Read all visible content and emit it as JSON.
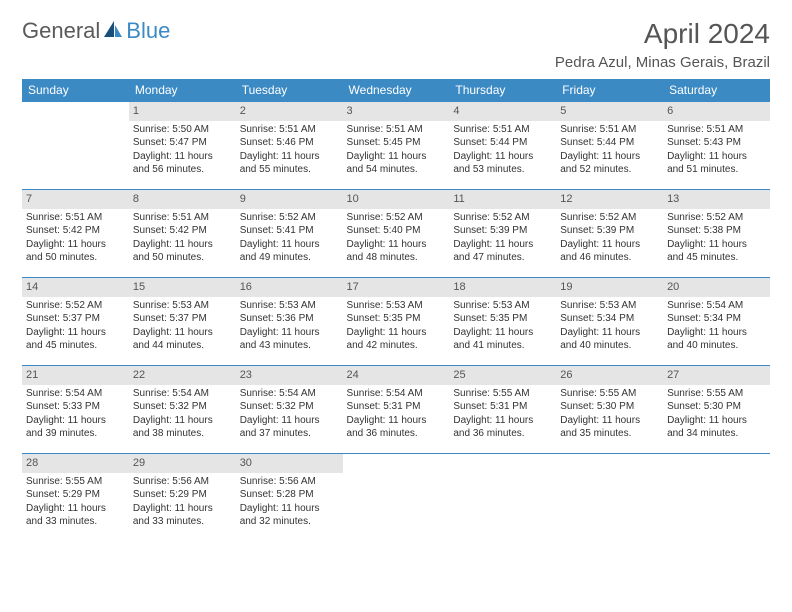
{
  "brand": {
    "general": "General",
    "blue": "Blue"
  },
  "title": "April 2024",
  "location": "Pedra Azul, Minas Gerais, Brazil",
  "colors": {
    "header_bg": "#3b8ac4",
    "header_text": "#ffffff",
    "daynum_bg": "#e5e5e5",
    "border": "#3b8ac4",
    "text": "#333333"
  },
  "typography": {
    "title_fontsize": 28,
    "location_fontsize": 15,
    "dayheader_fontsize": 12,
    "cell_fontsize": 10
  },
  "day_headers": [
    "Sunday",
    "Monday",
    "Tuesday",
    "Wednesday",
    "Thursday",
    "Friday",
    "Saturday"
  ],
  "weeks": [
    [
      null,
      {
        "n": "1",
        "sr": "Sunrise: 5:50 AM",
        "ss": "Sunset: 5:47 PM",
        "dl": "Daylight: 11 hours and 56 minutes."
      },
      {
        "n": "2",
        "sr": "Sunrise: 5:51 AM",
        "ss": "Sunset: 5:46 PM",
        "dl": "Daylight: 11 hours and 55 minutes."
      },
      {
        "n": "3",
        "sr": "Sunrise: 5:51 AM",
        "ss": "Sunset: 5:45 PM",
        "dl": "Daylight: 11 hours and 54 minutes."
      },
      {
        "n": "4",
        "sr": "Sunrise: 5:51 AM",
        "ss": "Sunset: 5:44 PM",
        "dl": "Daylight: 11 hours and 53 minutes."
      },
      {
        "n": "5",
        "sr": "Sunrise: 5:51 AM",
        "ss": "Sunset: 5:44 PM",
        "dl": "Daylight: 11 hours and 52 minutes."
      },
      {
        "n": "6",
        "sr": "Sunrise: 5:51 AM",
        "ss": "Sunset: 5:43 PM",
        "dl": "Daylight: 11 hours and 51 minutes."
      }
    ],
    [
      {
        "n": "7",
        "sr": "Sunrise: 5:51 AM",
        "ss": "Sunset: 5:42 PM",
        "dl": "Daylight: 11 hours and 50 minutes."
      },
      {
        "n": "8",
        "sr": "Sunrise: 5:51 AM",
        "ss": "Sunset: 5:42 PM",
        "dl": "Daylight: 11 hours and 50 minutes."
      },
      {
        "n": "9",
        "sr": "Sunrise: 5:52 AM",
        "ss": "Sunset: 5:41 PM",
        "dl": "Daylight: 11 hours and 49 minutes."
      },
      {
        "n": "10",
        "sr": "Sunrise: 5:52 AM",
        "ss": "Sunset: 5:40 PM",
        "dl": "Daylight: 11 hours and 48 minutes."
      },
      {
        "n": "11",
        "sr": "Sunrise: 5:52 AM",
        "ss": "Sunset: 5:39 PM",
        "dl": "Daylight: 11 hours and 47 minutes."
      },
      {
        "n": "12",
        "sr": "Sunrise: 5:52 AM",
        "ss": "Sunset: 5:39 PM",
        "dl": "Daylight: 11 hours and 46 minutes."
      },
      {
        "n": "13",
        "sr": "Sunrise: 5:52 AM",
        "ss": "Sunset: 5:38 PM",
        "dl": "Daylight: 11 hours and 45 minutes."
      }
    ],
    [
      {
        "n": "14",
        "sr": "Sunrise: 5:52 AM",
        "ss": "Sunset: 5:37 PM",
        "dl": "Daylight: 11 hours and 45 minutes."
      },
      {
        "n": "15",
        "sr": "Sunrise: 5:53 AM",
        "ss": "Sunset: 5:37 PM",
        "dl": "Daylight: 11 hours and 44 minutes."
      },
      {
        "n": "16",
        "sr": "Sunrise: 5:53 AM",
        "ss": "Sunset: 5:36 PM",
        "dl": "Daylight: 11 hours and 43 minutes."
      },
      {
        "n": "17",
        "sr": "Sunrise: 5:53 AM",
        "ss": "Sunset: 5:35 PM",
        "dl": "Daylight: 11 hours and 42 minutes."
      },
      {
        "n": "18",
        "sr": "Sunrise: 5:53 AM",
        "ss": "Sunset: 5:35 PM",
        "dl": "Daylight: 11 hours and 41 minutes."
      },
      {
        "n": "19",
        "sr": "Sunrise: 5:53 AM",
        "ss": "Sunset: 5:34 PM",
        "dl": "Daylight: 11 hours and 40 minutes."
      },
      {
        "n": "20",
        "sr": "Sunrise: 5:54 AM",
        "ss": "Sunset: 5:34 PM",
        "dl": "Daylight: 11 hours and 40 minutes."
      }
    ],
    [
      {
        "n": "21",
        "sr": "Sunrise: 5:54 AM",
        "ss": "Sunset: 5:33 PM",
        "dl": "Daylight: 11 hours and 39 minutes."
      },
      {
        "n": "22",
        "sr": "Sunrise: 5:54 AM",
        "ss": "Sunset: 5:32 PM",
        "dl": "Daylight: 11 hours and 38 minutes."
      },
      {
        "n": "23",
        "sr": "Sunrise: 5:54 AM",
        "ss": "Sunset: 5:32 PM",
        "dl": "Daylight: 11 hours and 37 minutes."
      },
      {
        "n": "24",
        "sr": "Sunrise: 5:54 AM",
        "ss": "Sunset: 5:31 PM",
        "dl": "Daylight: 11 hours and 36 minutes."
      },
      {
        "n": "25",
        "sr": "Sunrise: 5:55 AM",
        "ss": "Sunset: 5:31 PM",
        "dl": "Daylight: 11 hours and 36 minutes."
      },
      {
        "n": "26",
        "sr": "Sunrise: 5:55 AM",
        "ss": "Sunset: 5:30 PM",
        "dl": "Daylight: 11 hours and 35 minutes."
      },
      {
        "n": "27",
        "sr": "Sunrise: 5:55 AM",
        "ss": "Sunset: 5:30 PM",
        "dl": "Daylight: 11 hours and 34 minutes."
      }
    ],
    [
      {
        "n": "28",
        "sr": "Sunrise: 5:55 AM",
        "ss": "Sunset: 5:29 PM",
        "dl": "Daylight: 11 hours and 33 minutes."
      },
      {
        "n": "29",
        "sr": "Sunrise: 5:56 AM",
        "ss": "Sunset: 5:29 PM",
        "dl": "Daylight: 11 hours and 33 minutes."
      },
      {
        "n": "30",
        "sr": "Sunrise: 5:56 AM",
        "ss": "Sunset: 5:28 PM",
        "dl": "Daylight: 11 hours and 32 minutes."
      },
      null,
      null,
      null,
      null
    ]
  ]
}
